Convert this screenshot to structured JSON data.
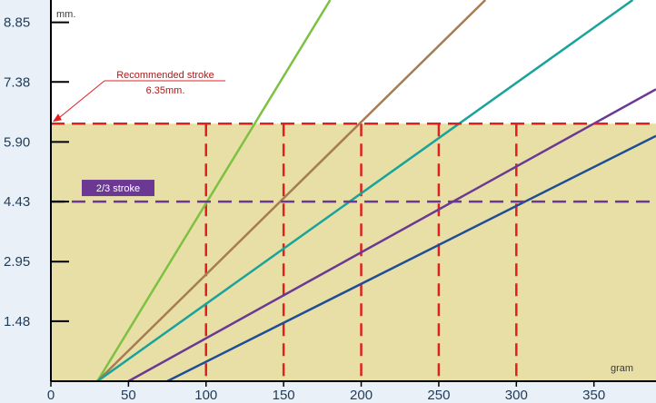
{
  "chart_data": {
    "type": "line",
    "x_unit": "gram",
    "y_unit": "mm.",
    "xlim": [
      0,
      390
    ],
    "ylim": [
      0,
      9.4
    ],
    "x_ticks": [
      "0",
      "50",
      "100",
      "150",
      "200",
      "250",
      "300",
      "350"
    ],
    "y_ticks": [
      "1.48",
      "2.95",
      "4.43",
      "5.90",
      "7.38",
      "8.85"
    ],
    "series": [
      {
        "color": "#7dc142",
        "points": [
          [
            30,
            0
          ],
          [
            180,
            9.4
          ]
        ]
      },
      {
        "color": "#a67c52",
        "points": [
          [
            30,
            0
          ],
          [
            280,
            9.4
          ]
        ]
      },
      {
        "color": "#1aa39a",
        "points": [
          [
            30,
            0
          ],
          [
            375,
            9.4
          ]
        ]
      },
      {
        "color": "#6b3894",
        "points": [
          [
            50,
            0
          ],
          [
            390,
            7.2
          ]
        ]
      },
      {
        "color": "#1f4e96",
        "points": [
          [
            75,
            0
          ],
          [
            390,
            6.05
          ]
        ]
      }
    ],
    "reference_lines": [
      {
        "y": 6.35,
        "color": "#e02020",
        "label_line1": "Recommended stroke",
        "label_line2": "6.35mm."
      },
      {
        "y": 4.43,
        "color": "#6b3894",
        "label": "2/3 stroke"
      }
    ],
    "vertical_markers": [
      100,
      150,
      200,
      250,
      300
    ],
    "marker_color": "#e02020",
    "band": {
      "from": 0,
      "to": 6.35,
      "color": "#e8dfa6"
    },
    "background_color": "#e9f0f7"
  }
}
